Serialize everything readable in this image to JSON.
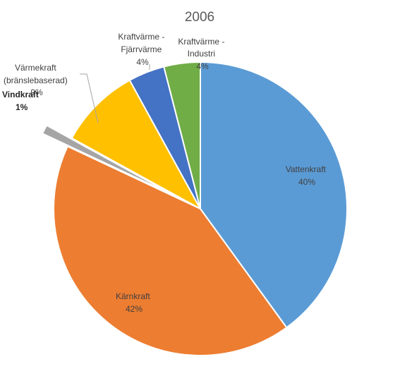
{
  "chart_data": {
    "type": "pie",
    "title": "2006",
    "slices": [
      {
        "name": "Vattenkraft",
        "value": 40,
        "label": "40%",
        "color": "#5b9bd5"
      },
      {
        "name": "Kärnkraft",
        "value": 42,
        "label": "42%",
        "color": "#ed7d31"
      },
      {
        "name": "Vindkraft",
        "value": 1,
        "label": "1%",
        "color": "#a5a5a5"
      },
      {
        "name": "Värmekraft (bränslebaserad)",
        "value": 9,
        "label": "9%",
        "color": "#ffc000"
      },
      {
        "name": "Kraftvärme - Fjärrvärme",
        "value": 4,
        "label": "4%",
        "color": "#4472c4"
      },
      {
        "name": "Kraftvärme - Industri",
        "value": 4,
        "label": "4%",
        "color": "#70ad47"
      }
    ],
    "legend": "none",
    "label_lines": {
      "vattenkraft": [
        "Vattenkraft",
        "40%"
      ],
      "karnkraft": [
        "Kärnkraft",
        "42%"
      ],
      "vindkraft": [
        "Vindkraft",
        "1%"
      ],
      "varmekraft": [
        "Värmekraft",
        "(bränslebaserad)",
        "9%"
      ],
      "fjarrvarme": [
        "Kraftvärme -",
        "Fjärrvärme",
        "4%"
      ],
      "industri": [
        "Kraftvärme -",
        "Industri",
        "4%"
      ]
    }
  }
}
